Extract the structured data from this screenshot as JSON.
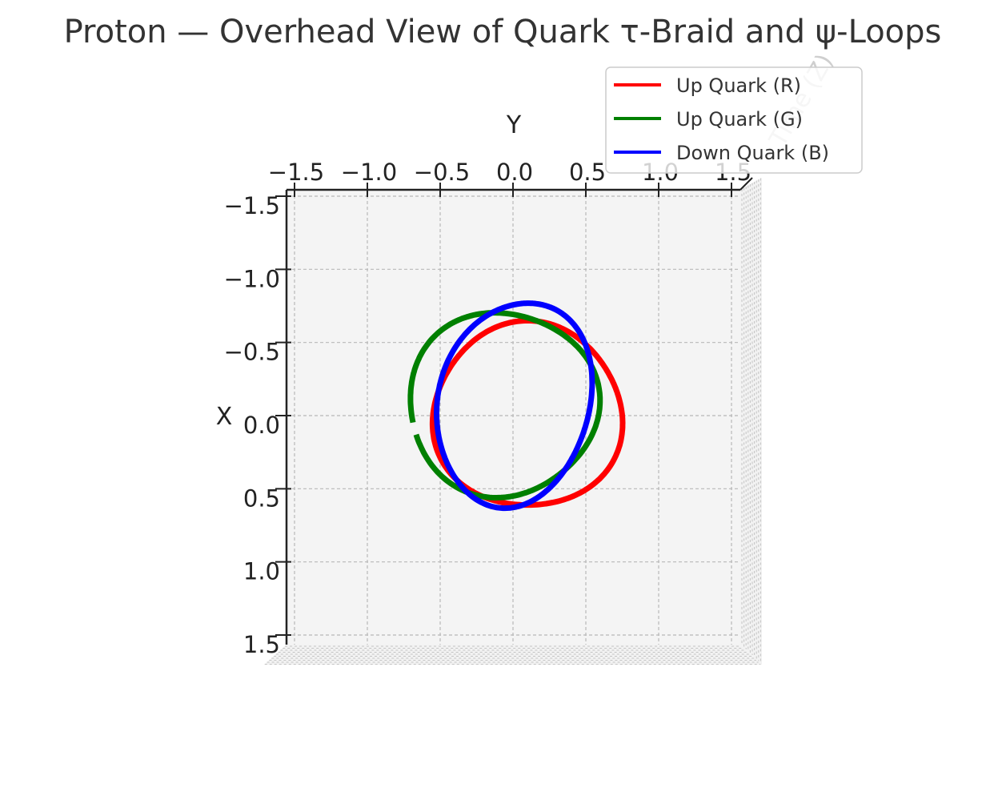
{
  "chart_data": {
    "type": "line",
    "title": "Proton — Overhead View of Quark τ-Braid and ψ-Loops",
    "xlabel": "Y",
    "ylabel": "X",
    "zlabel": "Time (Z)",
    "y_axis_inverted": true,
    "xlim": [
      -1.5,
      1.5
    ],
    "ylim": [
      -1.5,
      1.5
    ],
    "xticks": [
      -1.5,
      -1.0,
      -0.5,
      0.0,
      0.5,
      1.0,
      1.5
    ],
    "yticks": [
      -1.5,
      -1.0,
      -0.5,
      0.0,
      0.5,
      1.0,
      1.5
    ],
    "xtick_labels": [
      "−1.5",
      "−1.0",
      "−0.5",
      "0.0",
      "0.5",
      "1.0",
      "1.5"
    ],
    "ytick_labels": [
      "−1.5",
      "−1.0",
      "−0.5",
      "0.0",
      "0.5",
      "1.0",
      "1.5"
    ],
    "grid": true,
    "legend_position": "top-right",
    "series": [
      {
        "name": "Up Quark (R)",
        "color": "#ff0000",
        "start_angle_deg": 34,
        "end_angle_deg": 395,
        "center": [
          0.1,
          0.0
        ],
        "radius": [
          0.65,
          0.63
        ],
        "wobble": 0.03,
        "phase_deg": 0,
        "tilt_deg": 0
      },
      {
        "name": "Up Quark (G)",
        "color": "#008000",
        "start_angle_deg": 168,
        "end_angle_deg": 520,
        "center": [
          -0.07,
          -0.08
        ],
        "radius": [
          0.65,
          0.63
        ],
        "wobble": 0.03,
        "phase_deg": 120,
        "tilt_deg": 0
      },
      {
        "name": "Down Quark (B)",
        "color": "#0000ff",
        "start_angle_deg": 205,
        "end_angle_deg": 568,
        "center": [
          0.01,
          -0.08
        ],
        "radius": [
          0.52,
          0.71
        ],
        "wobble": 0.02,
        "phase_deg": 240,
        "tilt_deg": 14
      }
    ]
  }
}
